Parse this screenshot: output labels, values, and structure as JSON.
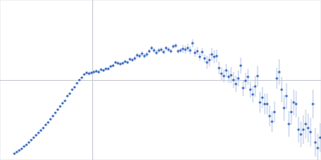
{
  "chart_data": {
    "type": "scatter",
    "x": [
      18,
      21,
      24,
      27,
      30,
      33,
      36,
      39,
      42,
      45,
      48,
      51,
      54,
      57,
      60,
      63,
      66,
      69,
      72,
      75,
      78,
      81,
      84,
      87,
      90,
      93,
      96,
      99,
      102,
      105,
      108,
      111,
      114,
      117,
      120,
      123,
      126,
      129,
      132,
      135,
      138,
      141,
      144,
      147,
      150,
      153,
      156,
      159,
      162,
      165,
      168,
      171,
      174,
      177,
      180,
      183,
      186,
      189,
      192,
      195,
      198,
      201,
      204,
      207,
      210,
      213,
      216,
      219,
      222,
      225,
      228,
      231,
      234,
      237,
      240,
      243,
      246,
      249,
      252,
      255,
      258,
      261,
      264,
      267,
      270,
      273,
      276,
      279,
      282,
      285,
      288,
      291,
      294,
      297,
      300,
      303,
      306,
      309,
      312,
      315,
      318,
      321,
      324,
      327,
      330,
      333,
      336,
      339,
      342,
      345,
      348,
      351,
      354,
      357,
      360,
      363,
      366,
      369,
      372,
      375,
      378,
      381,
      384,
      387,
      390,
      393,
      396,
      399
    ],
    "values": [
      8,
      10,
      12,
      14,
      17,
      19,
      22,
      25,
      28,
      31,
      34,
      37,
      40,
      44,
      47,
      51,
      55,
      59,
      63,
      67,
      71,
      74,
      80,
      83,
      88,
      91,
      96,
      100,
      103,
      107,
      109,
      108,
      109,
      110,
      111,
      110,
      113,
      112,
      114,
      114,
      117,
      118,
      122,
      121,
      120,
      121,
      123,
      122,
      126,
      125,
      127,
      131,
      130,
      133,
      130,
      132,
      136,
      140,
      137,
      134,
      137,
      138,
      135,
      140,
      138,
      136,
      142,
      143,
      136,
      137,
      139,
      138,
      140,
      137,
      146,
      134,
      136,
      129,
      135,
      127,
      122,
      125,
      132,
      129,
      130,
      115,
      108,
      105,
      112,
      104,
      106,
      100,
      95,
      102,
      118,
      90,
      99,
      104,
      88,
      82,
      92,
      105,
      72,
      78,
      70,
      70,
      55,
      48,
      60,
      102,
      110,
      88,
      65,
      80,
      45,
      60,
      72,
      70,
      38,
      32,
      38,
      45,
      40,
      35,
      70,
      22,
      15,
      28
    ],
    "errors": [
      1,
      1,
      1,
      1,
      1,
      1,
      1,
      1,
      1,
      1,
      1,
      1,
      1,
      1,
      1,
      1,
      1,
      1,
      1,
      1,
      1,
      1,
      1,
      1,
      1,
      1,
      1,
      1,
      1,
      1,
      2,
      2,
      2,
      2,
      2,
      2,
      2,
      2,
      2,
      2,
      2,
      2,
      2,
      2,
      2,
      2,
      2,
      2,
      2,
      2,
      3,
      3,
      3,
      3,
      3,
      3,
      3,
      3,
      3,
      3,
      3,
      3,
      3,
      3,
      3,
      3,
      3,
      3,
      3,
      3,
      5,
      5,
      5,
      5,
      5,
      5,
      5,
      5,
      5,
      5,
      8,
      8,
      8,
      8,
      8,
      8,
      8,
      8,
      8,
      8,
      10,
      10,
      10,
      10,
      10,
      10,
      10,
      10,
      10,
      10,
      13,
      13,
      13,
      13,
      13,
      13,
      13,
      13,
      13,
      13,
      16,
      16,
      16,
      16,
      16,
      16,
      16,
      16,
      16,
      16,
      18,
      18,
      18,
      18,
      18,
      18,
      18,
      18
    ],
    "color": "#3f6fc0",
    "marker": "circle",
    "xlim": [
      0,
      400
    ],
    "ylim": [
      0,
      200
    ],
    "xticks": [
      115
    ],
    "yticks": [
      100
    ],
    "grid": true,
    "tick_labels": false
  }
}
